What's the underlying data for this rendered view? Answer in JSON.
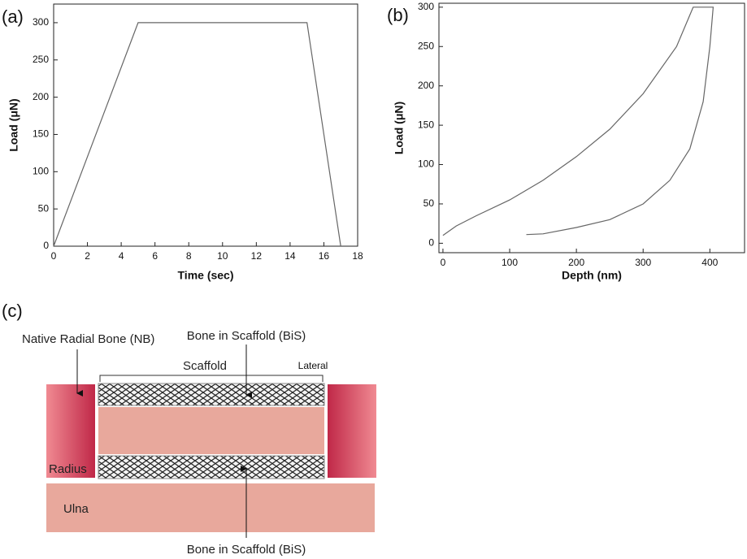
{
  "chart_data": [
    {
      "type": "line",
      "panel": "(a)",
      "x_label": "Time (sec)",
      "y_label": "Load (μN)",
      "xlim": [
        0,
        18
      ],
      "xticks": [
        0,
        2,
        4,
        6,
        8,
        10,
        12,
        14,
        16,
        18
      ],
      "ylim": [
        0,
        325
      ],
      "yticks": [
        0,
        50,
        100,
        150,
        200,
        250,
        300
      ],
      "series": [
        {
          "color": "#666666",
          "x": [
            0,
            5,
            15,
            17
          ],
          "values": [
            0,
            300,
            300,
            0
          ]
        }
      ]
    },
    {
      "type": "line",
      "panel": "(b)",
      "x_label": "Depth (nm)",
      "y_label": "Load (μN)",
      "xlim": [
        -6,
        452
      ],
      "xticks": [
        0,
        100,
        200,
        300,
        400
      ],
      "ylim": [
        -12,
        305
      ],
      "yticks": [
        0,
        50,
        100,
        150,
        200,
        250,
        300
      ],
      "series": [
        {
          "color": "#666666",
          "x": [
            0,
            20,
            50,
            100,
            150,
            200,
            250,
            300,
            350,
            370,
            375,
            405,
            405,
            400,
            390,
            370,
            340,
            300,
            250,
            200,
            150,
            125
          ],
          "values": [
            10,
            22,
            35,
            55,
            80,
            110,
            145,
            190,
            250,
            290,
            300,
            300,
            300,
            250,
            180,
            120,
            80,
            50,
            30,
            20,
            12,
            11
          ]
        }
      ]
    }
  ],
  "diagram": {
    "panel": "(c)",
    "native_bone": "Native Radial Bone (NB)",
    "bis_top": "Bone in Scaffold (BiS)",
    "scaffold": "Scaffold",
    "lateral": "Lateral",
    "radius": "Radius",
    "ulna": "Ulna",
    "bis_bottom": "Bone in Scaffold (BiS)"
  }
}
